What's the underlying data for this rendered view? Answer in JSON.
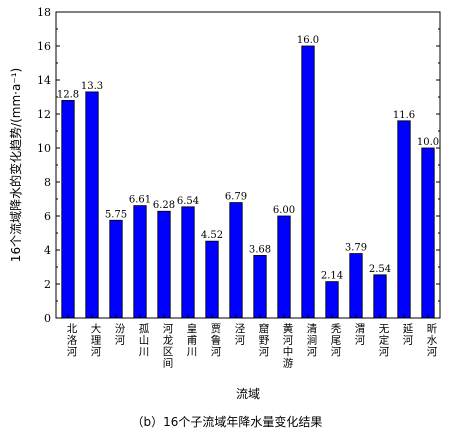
{
  "chart_data": {
    "type": "bar",
    "categories": [
      "北洛河",
      "大理河",
      "汾河",
      "孤山川",
      "河龙区间",
      "皇甫川",
      "贾鲁河",
      "泾河",
      "窟野河",
      "黄河中游",
      "清涧河",
      "秃尾河",
      "渭河",
      "无定河",
      "延河",
      "昕水河"
    ],
    "values": [
      12.8,
      13.3,
      5.75,
      6.61,
      6.28,
      6.54,
      4.52,
      6.79,
      3.68,
      6.0,
      16.0,
      2.14,
      3.79,
      2.54,
      11.6,
      10.0
    ],
    "value_labels": [
      "12.8",
      "13.3",
      "5.75",
      "6.61",
      "6.28",
      "6.54",
      "4.52",
      "6.79",
      "3.68",
      "6.00",
      "16.0",
      "2.14",
      "3.79",
      "2.54",
      "11.6",
      "10.0"
    ],
    "title": "",
    "xlabel": "流域",
    "ylabel": "16个流域降水的变化趋势/(mm·a⁻¹)",
    "ylim": [
      0,
      18
    ],
    "yticks": [
      "0",
      "2",
      "4",
      "6",
      "8",
      "10",
      "12",
      "14",
      "16",
      "18"
    ],
    "bar_color": "#0000ff",
    "grid": false,
    "legend": "none"
  },
  "caption": "（b）16个子流域年降水量变化结果"
}
